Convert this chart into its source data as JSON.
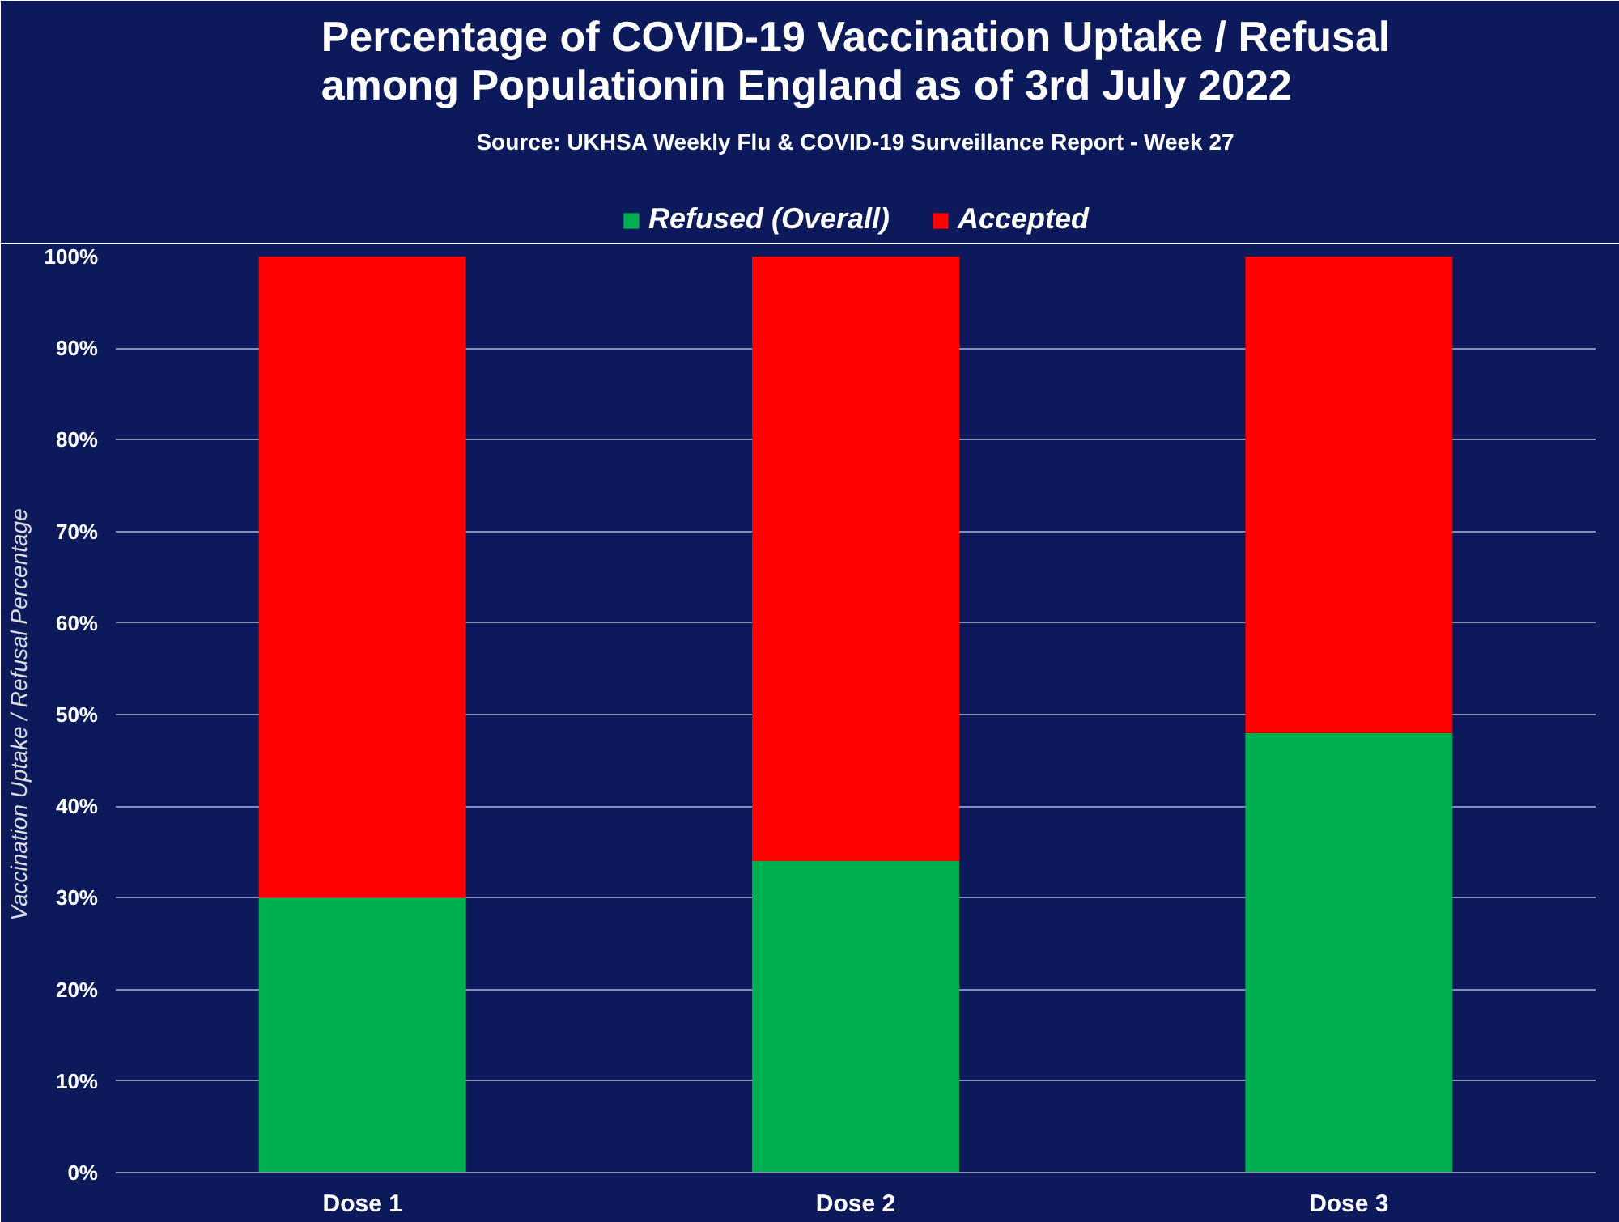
{
  "chart_data": {
    "type": "bar",
    "stacked": true,
    "title": "Percentage of COVID-19 Vaccination Uptake / Refusal\namong Populationin England as of 3rd July 2022",
    "subtitle": "Source: UKHSA Weekly Flu & COVID-19 Surveillance Report - Week 27",
    "ylabel": "Vaccination Uptake / Refusal Percentage",
    "categories": [
      "Dose 1",
      "Dose 2",
      "Dose 3"
    ],
    "series": [
      {
        "name": "Refused (Overall)",
        "color": "#00b050",
        "values": [
          30,
          34,
          48
        ]
      },
      {
        "name": "Accepted",
        "color": "#ff0000",
        "values": [
          70,
          66,
          52
        ]
      }
    ],
    "ylim": [
      0,
      100
    ],
    "yticks": [
      {
        "value": 0,
        "label": "0%"
      },
      {
        "value": 10,
        "label": "10%"
      },
      {
        "value": 20,
        "label": "20%"
      },
      {
        "value": 30,
        "label": "30%"
      },
      {
        "value": 40,
        "label": "40%"
      },
      {
        "value": 50,
        "label": "50%"
      },
      {
        "value": 60,
        "label": "60%"
      },
      {
        "value": 70,
        "label": "70%"
      },
      {
        "value": 80,
        "label": "80%"
      },
      {
        "value": 90,
        "label": "90%"
      },
      {
        "value": 100,
        "label": "100%"
      }
    ],
    "grid": "y",
    "legend": "top"
  }
}
